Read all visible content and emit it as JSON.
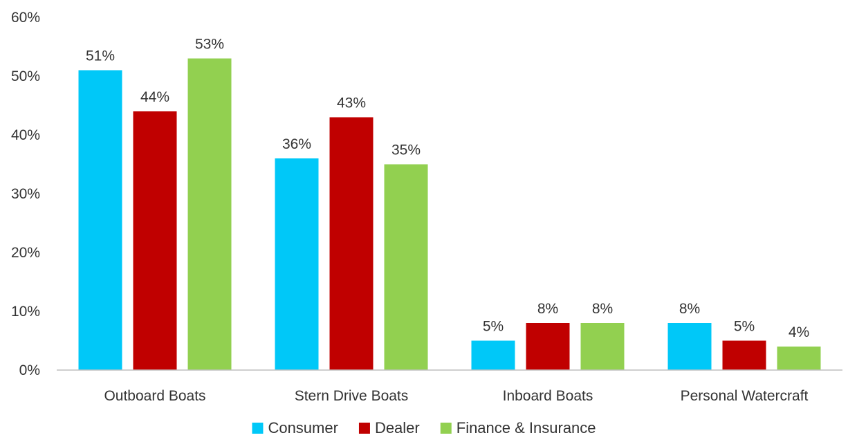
{
  "chart_data": {
    "type": "bar",
    "categories": [
      "Outboard Boats",
      "Stern Drive Boats",
      "Inboard Boats",
      "Personal Watercraft"
    ],
    "series": [
      {
        "name": "Consumer",
        "values": [
          51,
          36,
          5,
          8
        ],
        "color": "#00c8f8"
      },
      {
        "name": "Dealer",
        "values": [
          44,
          43,
          8,
          5
        ],
        "color": "#c00000"
      },
      {
        "name": "Finance & Insurance",
        "values": [
          53,
          35,
          8,
          4
        ],
        "color": "#92d050"
      }
    ],
    "y_ticks": [
      "0%",
      "10%",
      "20%",
      "30%",
      "40%",
      "50%",
      "60%"
    ],
    "ylim": [
      0,
      60
    ],
    "data_labels": [
      [
        "51%",
        "36%",
        "5%",
        "8%"
      ],
      [
        "44%",
        "43%",
        "8%",
        "5%"
      ],
      [
        "53%",
        "35%",
        "8%",
        "4%"
      ]
    ],
    "grid": false,
    "legend": "bottom-center",
    "title": "",
    "xlabel": "",
    "ylabel": ""
  }
}
